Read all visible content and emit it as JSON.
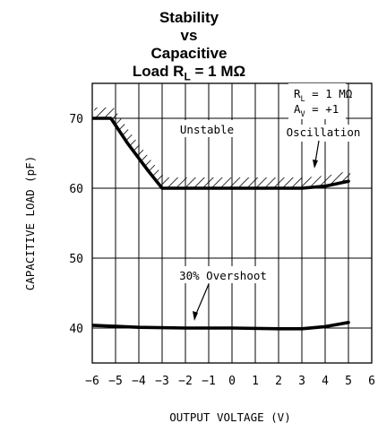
{
  "chart_data": {
    "type": "line",
    "title_lines": [
      "Stability",
      "vs",
      "Capacitive"
    ],
    "title_last": {
      "prefix": "Load R",
      "sub": "L",
      "suffix": " = 1 MΩ"
    },
    "xlabel": "OUTPUT VOLTAGE (V)",
    "ylabel": "CAPACITIVE LOAD (pF)",
    "xlim": [
      -6,
      6
    ],
    "ylim": [
      35,
      75
    ],
    "x_ticks": [
      -6,
      -5,
      -4,
      -3,
      -2,
      -1,
      0,
      1,
      2,
      3,
      4,
      5,
      6
    ],
    "x_tick_labels": [
      "−6",
      "−5",
      "−4",
      "−3",
      "−2",
      "−1",
      "0",
      "1",
      "2",
      "3",
      "4",
      "5",
      "6"
    ],
    "y_ticks": [
      40,
      50,
      60,
      70
    ],
    "y_tick_labels": [
      "40",
      "50",
      "60",
      "70"
    ],
    "grid": true,
    "series": [
      {
        "x": [
          -6,
          -5.2,
          -4.5,
          -3.6,
          -3,
          -2.5,
          3,
          4,
          5
        ],
        "y": [
          70,
          70,
          66.5,
          62.5,
          60,
          60,
          60,
          60.3,
          61
        ],
        "hatched_above": true
      },
      {
        "x": [
          -6,
          -4,
          -2,
          0,
          2,
          3,
          4,
          5
        ],
        "y": [
          40.4,
          40.1,
          40,
          40,
          39.9,
          39.9,
          40.2,
          40.8
        ]
      }
    ],
    "annotations": {
      "unstable": "Unstable",
      "oscillation": "Oscillation",
      "overshoot": "30% Overshoot",
      "rl": {
        "prefix": "R",
        "sub": "L",
        "suffix": " = 1 MΩ"
      },
      "av": {
        "prefix": "A",
        "sub": "V",
        "suffix": " = +1"
      }
    },
    "colors": {
      "line": "#000000",
      "grid": "#000000",
      "background": "#ffffff"
    }
  }
}
